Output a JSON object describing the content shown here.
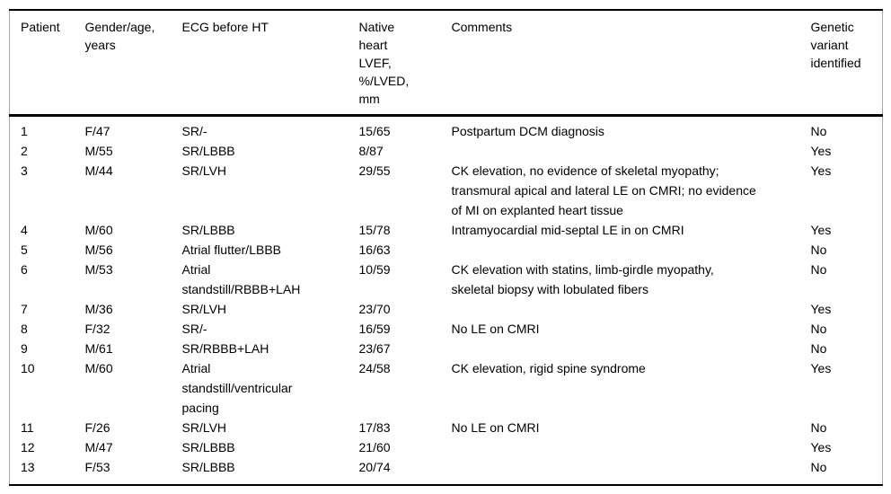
{
  "table": {
    "columns": [
      "Patient",
      "Gender/age, years",
      "ECG before HT",
      "Native heart LVEF, %/LVED, mm",
      "Comments",
      "Genetic variant identified"
    ],
    "rows": [
      {
        "patient": "1",
        "gender_age": "F/47",
        "ecg": "SR/-",
        "lvef_lved": "15/65",
        "comments": "Postpartum DCM diagnosis",
        "genetic_variant": "No"
      },
      {
        "patient": "2",
        "gender_age": "M/55",
        "ecg": "SR/LBBB",
        "lvef_lved": "8/87",
        "comments": "",
        "genetic_variant": "Yes"
      },
      {
        "patient": "3",
        "gender_age": "M/44",
        "ecg": "SR/LVH",
        "lvef_lved": "29/55",
        "comments": "CK elevation, no evidence of skeletal myopathy; transmural apical and lateral LE on CMRI; no evidence of MI on explanted heart tissue",
        "genetic_variant": "Yes"
      },
      {
        "patient": "4",
        "gender_age": "M/60",
        "ecg": "SR/LBBB",
        "lvef_lved": "15/78",
        "comments": "Intramyocardial mid-septal LE in on CMRI",
        "genetic_variant": "Yes"
      },
      {
        "patient": "5",
        "gender_age": "M/56",
        "ecg": "Atrial flutter/LBBB",
        "lvef_lved": "16/63",
        "comments": "",
        "genetic_variant": "No"
      },
      {
        "patient": "6",
        "gender_age": "M/53",
        "ecg": "Atrial standstill/RBBB+LAH",
        "lvef_lved": "10/59",
        "comments": "CK elevation with statins, limb-girdle myopathy, skeletal biopsy with lobulated fibers",
        "genetic_variant": "No"
      },
      {
        "patient": "7",
        "gender_age": "M/36",
        "ecg": "SR/LVH",
        "lvef_lved": "23/70",
        "comments": "",
        "genetic_variant": "Yes"
      },
      {
        "patient": "8",
        "gender_age": "F/32",
        "ecg": "SR/-",
        "lvef_lved": "16/59",
        "comments": "No LE on CMRI",
        "genetic_variant": "No"
      },
      {
        "patient": "9",
        "gender_age": "M/61",
        "ecg": "SR/RBBB+LAH",
        "lvef_lved": "23/67",
        "comments": "",
        "genetic_variant": "No"
      },
      {
        "patient": "10",
        "gender_age": "M/60",
        "ecg": "Atrial standstill/ventricular pacing",
        "lvef_lved": "24/58",
        "comments": "CK elevation, rigid spine syndrome",
        "genetic_variant": "Yes"
      },
      {
        "patient": "11",
        "gender_age": "F/26",
        "ecg": "SR/LVH",
        "lvef_lved": "17/83",
        "comments": "No LE on CMRI",
        "genetic_variant": "No"
      },
      {
        "patient": "12",
        "gender_age": "M/47",
        "ecg": "SR/LBBB",
        "lvef_lved": "21/60",
        "comments": "",
        "genetic_variant": "Yes"
      },
      {
        "patient": "13",
        "gender_age": "F/53",
        "ecg": "SR/LBBB",
        "lvef_lved": "20/74",
        "comments": "",
        "genetic_variant": "No"
      }
    ]
  },
  "colors": {
    "rule_heavy": "#000000",
    "rule_side": "#aaaaaa",
    "background": "#ffffff",
    "text": "#000000"
  }
}
